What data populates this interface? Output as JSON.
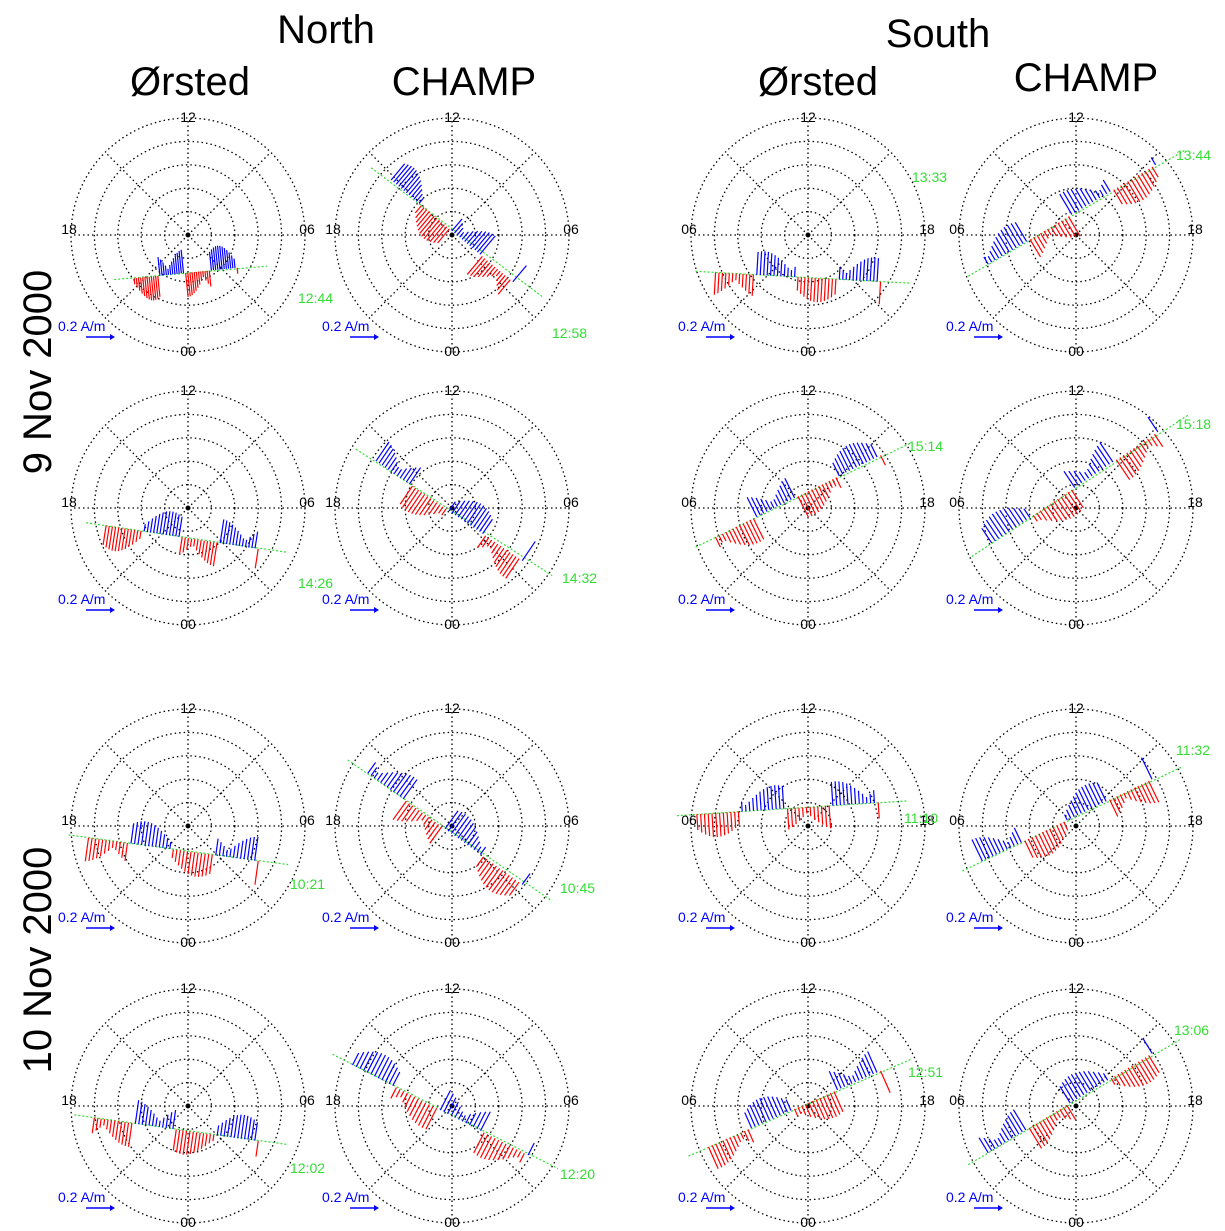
{
  "headers": {
    "north": "North",
    "south": "South",
    "orsted_n": "Ørsted",
    "champ_n": "CHAMP",
    "orsted_s": "Ørsted",
    "champ_s": "CHAMP"
  },
  "row_labels": {
    "day1": "9 Nov 2000",
    "day2": "10 Nov 2000"
  },
  "colors": {
    "positive_current": "#ff0000",
    "negative_current": "#0000ff",
    "orbit_track": "#33dd33",
    "scale_arrow": "#0000ff",
    "grid": "#000000"
  },
  "scale_label": "0.2 A/m",
  "chart_data": [
    {
      "type": "polar",
      "hemisphere": "North",
      "satellite": "Ørsted",
      "date": "9 Nov 2000",
      "time": "12:44",
      "mlt_labels": {
        "top": "12",
        "bottom": "00",
        "left": "18",
        "right": "06"
      },
      "scale": "0.2 A/m"
    },
    {
      "type": "polar",
      "hemisphere": "North",
      "satellite": "CHAMP",
      "date": "9 Nov 2000",
      "time": "12:58",
      "mlt_labels": {
        "top": "12",
        "bottom": "00",
        "left": "18",
        "right": "06"
      },
      "scale": "0.2 A/m"
    },
    {
      "type": "polar",
      "hemisphere": "South",
      "satellite": "Ørsted",
      "date": "9 Nov 2000",
      "time": "13:33",
      "mlt_labels": {
        "top": "12",
        "bottom": "00",
        "left": "06",
        "right": "18"
      },
      "scale": "0.2 A/m"
    },
    {
      "type": "polar",
      "hemisphere": "South",
      "satellite": "CHAMP",
      "date": "9 Nov 2000",
      "time": "13:44",
      "mlt_labels": {
        "top": "12",
        "bottom": "00",
        "left": "06",
        "right": "18"
      },
      "scale": "0.2 A/m"
    },
    {
      "type": "polar",
      "hemisphere": "North",
      "satellite": "Ørsted",
      "date": "9 Nov 2000",
      "time": "14:26",
      "mlt_labels": {
        "top": "12",
        "bottom": "00",
        "left": "18",
        "right": "06"
      },
      "scale": "0.2 A/m"
    },
    {
      "type": "polar",
      "hemisphere": "North",
      "satellite": "CHAMP",
      "date": "9 Nov 2000",
      "time": "14:32",
      "mlt_labels": {
        "top": "12",
        "bottom": "00",
        "left": "18",
        "right": "06"
      },
      "scale": "0.2 A/m"
    },
    {
      "type": "polar",
      "hemisphere": "South",
      "satellite": "Ørsted",
      "date": "9 Nov 2000",
      "time": "15:14",
      "mlt_labels": {
        "top": "12",
        "bottom": "00",
        "left": "06",
        "right": "18"
      },
      "scale": "0.2 A/m"
    },
    {
      "type": "polar",
      "hemisphere": "South",
      "satellite": "CHAMP",
      "date": "9 Nov 2000",
      "time": "15:18",
      "mlt_labels": {
        "top": "12",
        "bottom": "00",
        "left": "06",
        "right": "18"
      },
      "scale": "0.2 A/m"
    },
    {
      "type": "polar",
      "hemisphere": "North",
      "satellite": "Ørsted",
      "date": "10 Nov 2000",
      "time": "10:21",
      "mlt_labels": {
        "top": "12",
        "bottom": "00",
        "left": "18",
        "right": "06"
      },
      "scale": "0.2 A/m"
    },
    {
      "type": "polar",
      "hemisphere": "North",
      "satellite": "CHAMP",
      "date": "10 Nov 2000",
      "time": "10:45",
      "mlt_labels": {
        "top": "12",
        "bottom": "00",
        "left": "18",
        "right": "06"
      },
      "scale": "0.2 A/m"
    },
    {
      "type": "polar",
      "hemisphere": "South",
      "satellite": "Ørsted",
      "date": "10 Nov 2000",
      "time": "11:10",
      "mlt_labels": {
        "top": "12",
        "bottom": "00",
        "left": "06",
        "right": "18"
      },
      "scale": "0.2 A/m"
    },
    {
      "type": "polar",
      "hemisphere": "South",
      "satellite": "CHAMP",
      "date": "10 Nov 2000",
      "time": "11:32",
      "mlt_labels": {
        "top": "12",
        "bottom": "00",
        "left": "06",
        "right": "18"
      },
      "scale": "0.2 A/m"
    },
    {
      "type": "polar",
      "hemisphere": "North",
      "satellite": "Ørsted",
      "date": "10 Nov 2000",
      "time": "12:02",
      "mlt_labels": {
        "top": "12",
        "bottom": "00",
        "left": "18",
        "right": "06"
      },
      "scale": "0.2 A/m"
    },
    {
      "type": "polar",
      "hemisphere": "North",
      "satellite": "CHAMP",
      "date": "10 Nov 2000",
      "time": "12:20",
      "mlt_labels": {
        "top": "12",
        "bottom": "00",
        "left": "18",
        "right": "06"
      },
      "scale": "0.2 A/m"
    },
    {
      "type": "polar",
      "hemisphere": "South",
      "satellite": "Ørsted",
      "date": "10 Nov 2000",
      "time": "12:51",
      "mlt_labels": {
        "top": "12",
        "bottom": "00",
        "left": "06",
        "right": "18"
      },
      "scale": "0.2 A/m"
    },
    {
      "type": "polar",
      "hemisphere": "South",
      "satellite": "CHAMP",
      "date": "10 Nov 2000",
      "time": "13:06",
      "mlt_labels": {
        "top": "12",
        "bottom": "00",
        "left": "06",
        "right": "18"
      },
      "scale": "0.2 A/m"
    }
  ]
}
